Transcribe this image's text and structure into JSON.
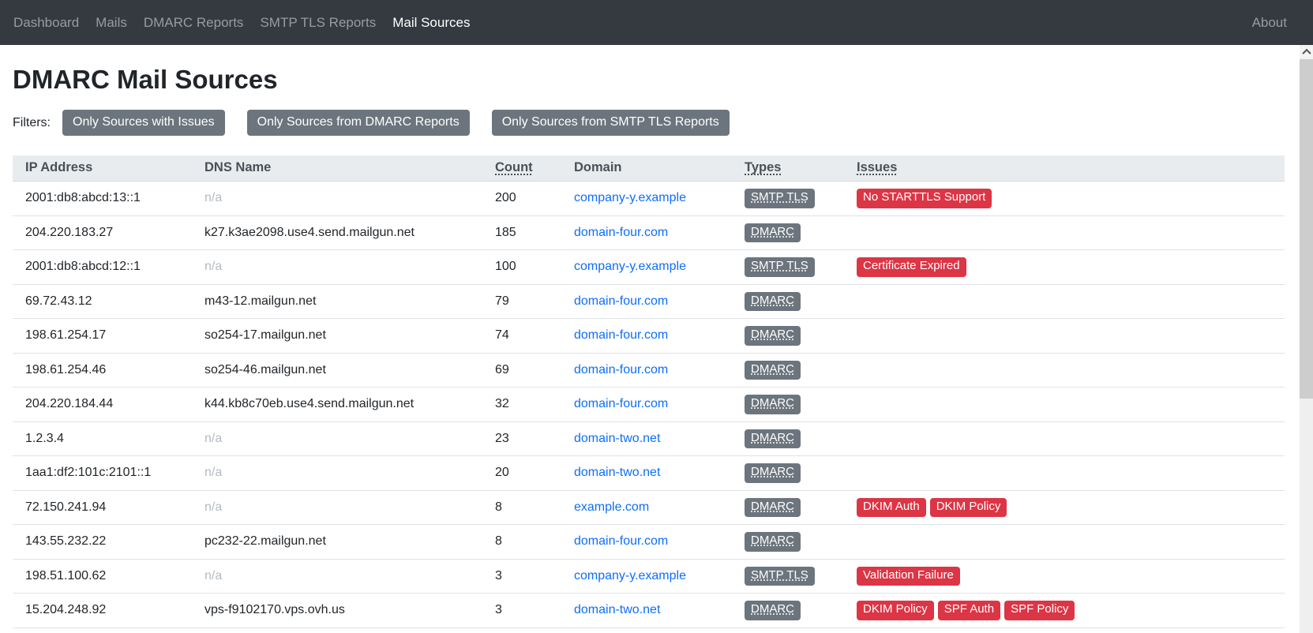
{
  "navbar": {
    "items": [
      {
        "label": "Dashboard",
        "active": false
      },
      {
        "label": "Mails",
        "active": false
      },
      {
        "label": "DMARC Reports",
        "active": false
      },
      {
        "label": "SMTP TLS Reports",
        "active": false
      },
      {
        "label": "Mail Sources",
        "active": true
      }
    ],
    "about_label": "About"
  },
  "page": {
    "title": "DMARC Mail Sources",
    "filters_label": "Filters:"
  },
  "filters": {
    "buttons": [
      "Only Sources with Issues",
      "Only Sources from DMARC Reports",
      "Only Sources from SMTP TLS Reports"
    ]
  },
  "table": {
    "columns": [
      {
        "label": "IP Address",
        "underlined": false
      },
      {
        "label": "DNS Name",
        "underlined": false
      },
      {
        "label": "Count",
        "underlined": true
      },
      {
        "label": "Domain",
        "underlined": false
      },
      {
        "label": "Types",
        "underlined": true
      },
      {
        "label": "Issues",
        "underlined": true
      }
    ],
    "na_text": "n/a",
    "rows": [
      {
        "ip": "2001:db8:abcd:13::1",
        "dns": "n/a",
        "count": "200",
        "domain": "company-y.example",
        "types": [
          "SMTP TLS"
        ],
        "issues": [
          "No STARTTLS Support"
        ]
      },
      {
        "ip": "204.220.183.27",
        "dns": "k27.k3ae2098.use4.send.mailgun.net",
        "count": "185",
        "domain": "domain-four.com",
        "types": [
          "DMARC"
        ],
        "issues": []
      },
      {
        "ip": "2001:db8:abcd:12::1",
        "dns": "n/a",
        "count": "100",
        "domain": "company-y.example",
        "types": [
          "SMTP TLS"
        ],
        "issues": [
          "Certificate Expired"
        ]
      },
      {
        "ip": "69.72.43.12",
        "dns": "m43-12.mailgun.net",
        "count": "79",
        "domain": "domain-four.com",
        "types": [
          "DMARC"
        ],
        "issues": []
      },
      {
        "ip": "198.61.254.17",
        "dns": "so254-17.mailgun.net",
        "count": "74",
        "domain": "domain-four.com",
        "types": [
          "DMARC"
        ],
        "issues": []
      },
      {
        "ip": "198.61.254.46",
        "dns": "so254-46.mailgun.net",
        "count": "69",
        "domain": "domain-four.com",
        "types": [
          "DMARC"
        ],
        "issues": []
      },
      {
        "ip": "204.220.184.44",
        "dns": "k44.kb8c70eb.use4.send.mailgun.net",
        "count": "32",
        "domain": "domain-four.com",
        "types": [
          "DMARC"
        ],
        "issues": []
      },
      {
        "ip": "1.2.3.4",
        "dns": "n/a",
        "count": "23",
        "domain": "domain-two.net",
        "types": [
          "DMARC"
        ],
        "issues": []
      },
      {
        "ip": "1aa1:df2:101c:2101::1",
        "dns": "n/a",
        "count": "20",
        "domain": "domain-two.net",
        "types": [
          "DMARC"
        ],
        "issues": []
      },
      {
        "ip": "72.150.241.94",
        "dns": "n/a",
        "count": "8",
        "domain": "example.com",
        "types": [
          "DMARC"
        ],
        "issues": [
          "DKIM Auth",
          "DKIM Policy"
        ]
      },
      {
        "ip": "143.55.232.22",
        "dns": "pc232-22.mailgun.net",
        "count": "8",
        "domain": "domain-four.com",
        "types": [
          "DMARC"
        ],
        "issues": []
      },
      {
        "ip": "198.51.100.62",
        "dns": "n/a",
        "count": "3",
        "domain": "company-y.example",
        "types": [
          "SMTP TLS"
        ],
        "issues": [
          "Validation Failure"
        ]
      },
      {
        "ip": "15.204.248.92",
        "dns": "vps-f9102170.vps.ovh.us",
        "count": "3",
        "domain": "domain-two.net",
        "types": [
          "DMARC"
        ],
        "issues": [
          "DKIM Policy",
          "SPF Auth",
          "SPF Policy"
        ]
      }
    ]
  },
  "colors": {
    "navbar_bg": "#343a40",
    "link_blue": "#0d6efd",
    "badge_gray": "#6c757d",
    "badge_red": "#dc3545",
    "header_bg": "#e9ecef"
  }
}
